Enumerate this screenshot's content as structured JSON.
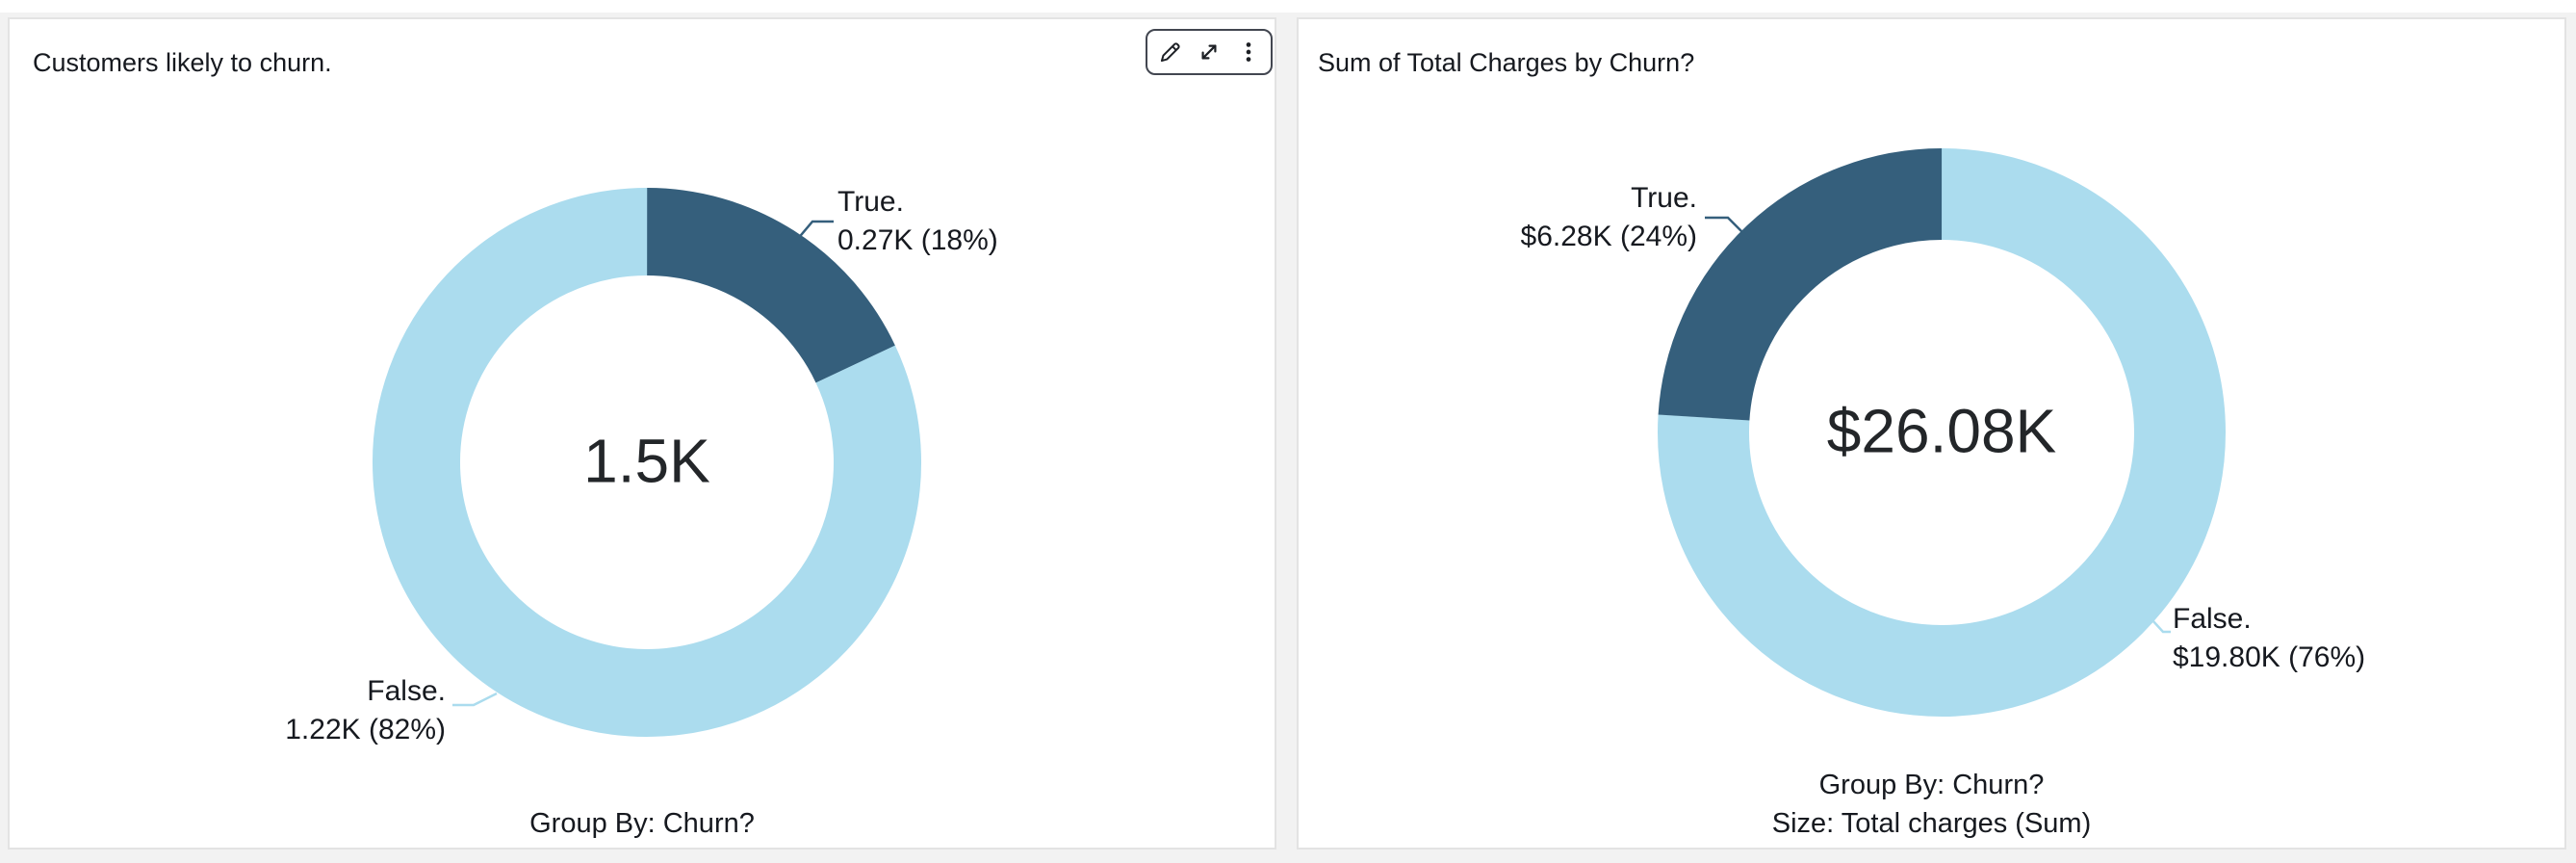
{
  "colors": {
    "accent_dark": "#355f7c",
    "accent_light": "#abdcee",
    "page_background": "#f2f2f2",
    "card_background": "#ffffff",
    "card_border": "#e3e3e3",
    "text_primary": "#16191f",
    "toolbar_border": "#424650"
  },
  "toolbar": {
    "icons": [
      "edit-pencil",
      "expand",
      "menu-kebab"
    ]
  },
  "charts": [
    {
      "title": "Customers likely to churn.",
      "center_value": "1.5K",
      "footer": [
        "Group By: Churn?"
      ],
      "segments": [
        {
          "name": "True",
          "label": "True.",
          "value_text": "0.27K (18%)",
          "pct": 18,
          "color_key": "accent_dark"
        },
        {
          "name": "False",
          "label": "False.",
          "value_text": "1.22K (82%)",
          "pct": 82,
          "color_key": "accent_light"
        }
      ]
    },
    {
      "title": "Sum of Total Charges by Churn?",
      "center_value": "$26.08K",
      "footer": [
        "Group By: Churn?",
        "Size: Total charges (Sum)"
      ],
      "segments": [
        {
          "name": "False",
          "label": "False.",
          "value_text": "$19.80K (76%)",
          "pct": 76,
          "color_key": "accent_light"
        },
        {
          "name": "True",
          "label": "True.",
          "value_text": "$6.28K (24%)",
          "pct": 24,
          "color_key": "accent_dark"
        }
      ]
    }
  ],
  "chart_data": [
    {
      "type": "pie",
      "variant": "donut",
      "title": "Customers likely to churn.",
      "group_by": "Churn?",
      "categories": [
        "True",
        "False"
      ],
      "values_k": [
        0.27,
        1.22
      ],
      "percentages": [
        18,
        82
      ],
      "center_total": "1.5K",
      "colors": [
        "#355f7c",
        "#abdcee"
      ],
      "legend_position": "none",
      "labels": [
        "True. 0.27K (18%)",
        "False. 1.22K (82%)"
      ]
    },
    {
      "type": "pie",
      "variant": "donut",
      "title": "Sum of Total Charges by Churn?",
      "group_by": "Churn?",
      "size_field": "Total charges (Sum)",
      "categories": [
        "True",
        "False"
      ],
      "values_k_dollars": [
        6.28,
        19.8
      ],
      "percentages": [
        24,
        76
      ],
      "center_total": "$26.08K",
      "colors": [
        "#355f7c",
        "#abdcee"
      ],
      "legend_position": "none",
      "labels": [
        "True. $6.28K (24%)",
        "False. $19.80K (76%)"
      ]
    }
  ]
}
